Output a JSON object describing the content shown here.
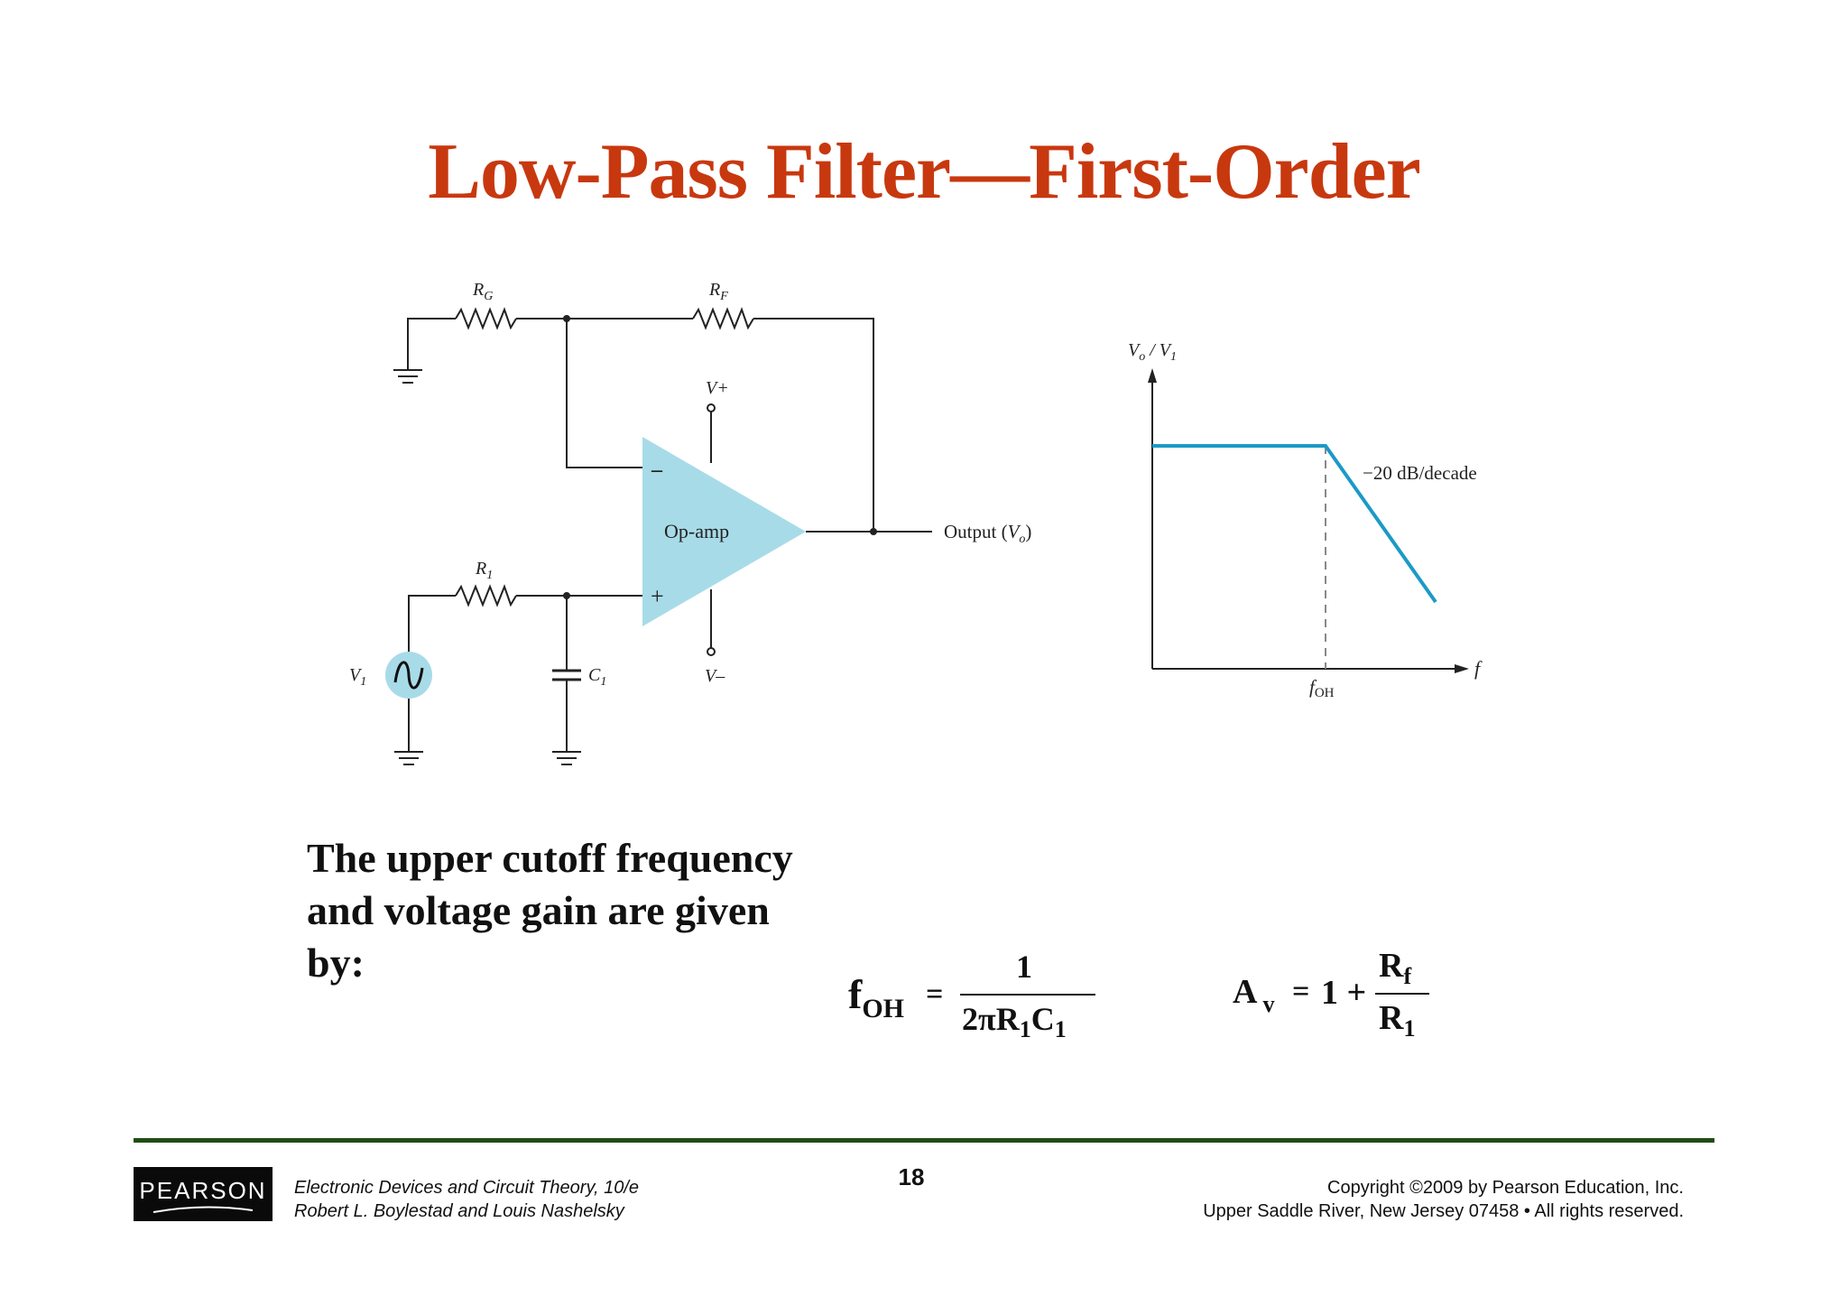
{
  "slide": {
    "title": "Low-Pass Filter—First-Order",
    "title_color": "#c8380f",
    "body_lines": [
      "The upper cutoff frequency",
      "and voltage gain are given",
      "by:"
    ]
  },
  "circuit": {
    "label_rg": "R",
    "label_rg_sub": "G",
    "label_rf": "R",
    "label_rf_sub": "F",
    "label_r1": "R",
    "label_r1_sub": "1",
    "label_c1": "C",
    "label_c1_sub": "1",
    "label_v1": "V",
    "label_v1_sub": "1",
    "label_vplus": "V+",
    "label_vminus": "V–",
    "opamp_label": "Op-amp",
    "minus_sign": "–",
    "plus_sign": "+",
    "output_label": "Output (",
    "output_v": "V",
    "output_sub": "o",
    "output_close": ")",
    "opamp_color": "#a8dbe8",
    "source_color": "#a8dbe8"
  },
  "response_plot": {
    "y_label_a": "V",
    "y_label_a_sub": "o",
    "y_label_sep": " / ",
    "y_label_b": "V",
    "y_label_b_sub": "1",
    "x_label": "f",
    "cutoff_label": "f",
    "cutoff_sub": "OH",
    "slope_label": "−20 dB/decade",
    "curve_color": "#1b9ac6"
  },
  "formulas": {
    "f_lhs": "f",
    "f_lhs_sub": "OH",
    "eq": "=",
    "f_num": "1",
    "f_den_a": "2πR",
    "f_den_sub1": "1",
    "f_den_b": "C",
    "f_den_sub2": "1",
    "a_lhs": "A",
    "a_lhs_sub": "v",
    "a_rhs": "1 +",
    "a_num": "R",
    "a_num_sub": "f",
    "a_den": "R",
    "a_den_sub": "1"
  },
  "footer": {
    "logo": "PEARSON",
    "book_title": "Electronic Devices and Circuit Theory, 10/e",
    "book_authors": "Robert L. Boylestad and Louis Nashelsky",
    "page_number": "18",
    "copyright": "Copyright ©2009 by Pearson Education, Inc.",
    "address": "Upper Saddle River, New Jersey 07458 • All rights reserved.",
    "rule_color": "#1f4d14"
  }
}
